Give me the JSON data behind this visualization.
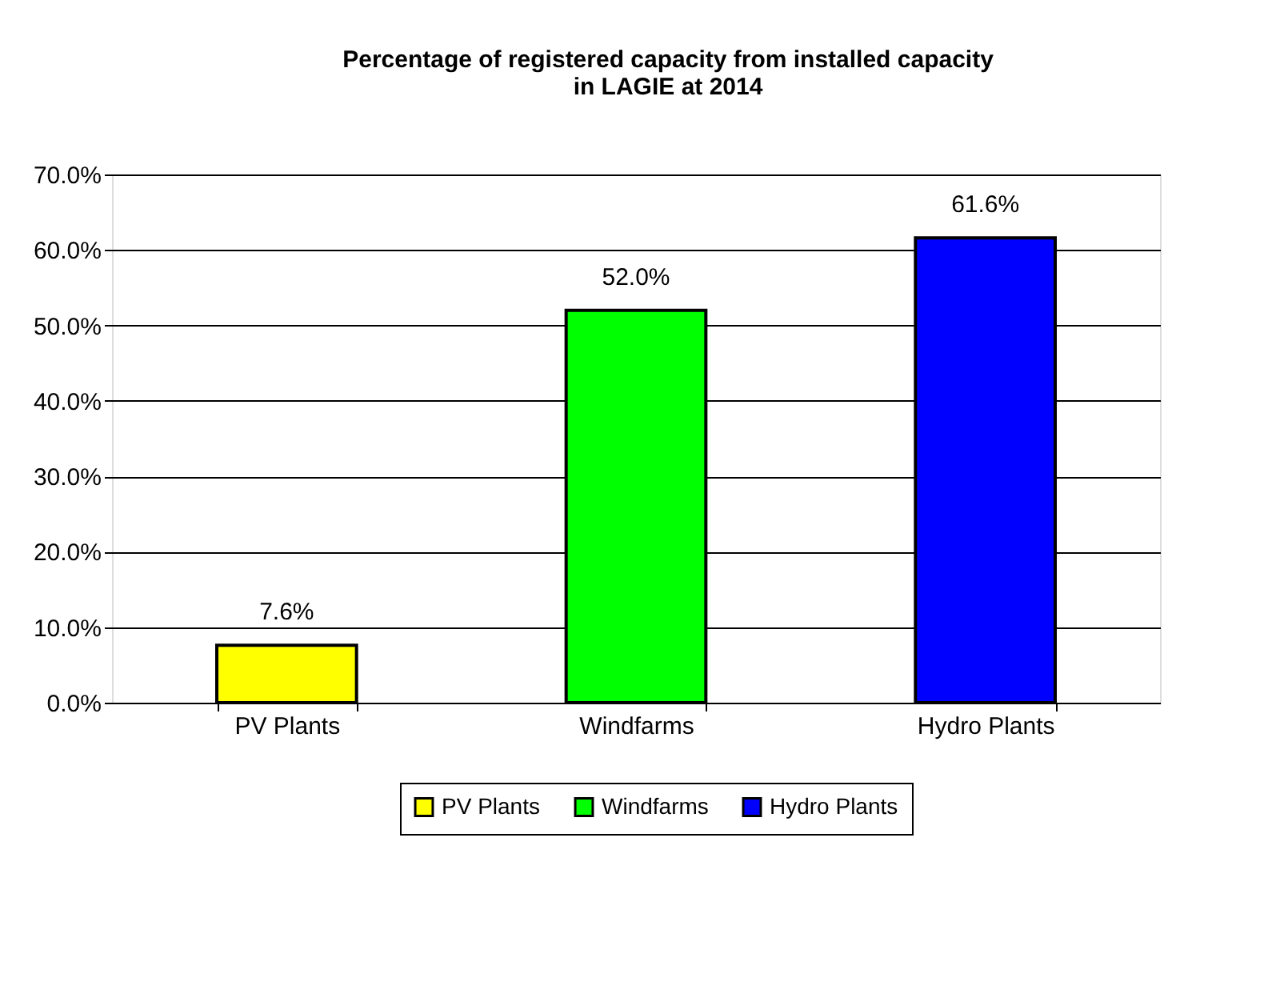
{
  "chart_data": {
    "type": "bar",
    "title": "Percentage of registered capacity from installed capacity  in LAGIE at 2014",
    "categories": [
      "PV Plants",
      "Windfarms",
      "Hydro Plants"
    ],
    "series": [
      {
        "name": "PV Plants",
        "color": "#ffff00",
        "values": [
          7.6,
          null,
          null
        ],
        "value_labels": [
          "7.6%",
          null,
          null
        ]
      },
      {
        "name": "Windfarms",
        "color": "#00ff00",
        "values": [
          null,
          52.0,
          null
        ],
        "value_labels": [
          null,
          "52.0%",
          null
        ]
      },
      {
        "name": "Hydro Plants",
        "color": "#0000ff",
        "values": [
          null,
          null,
          61.6
        ],
        "value_labels": [
          null,
          null,
          "61.6%"
        ]
      }
    ],
    "ylim": [
      0,
      70
    ],
    "yticks": [
      {
        "value": 0,
        "label": "0.0%"
      },
      {
        "value": 10,
        "label": "10.0%"
      },
      {
        "value": 20,
        "label": "20.0%"
      },
      {
        "value": 30,
        "label": "30.0%"
      },
      {
        "value": 40,
        "label": "40.0%"
      },
      {
        "value": 50,
        "label": "50.0%"
      },
      {
        "value": 60,
        "label": "60.0%"
      },
      {
        "value": 70,
        "label": "70.0%"
      }
    ],
    "grid": "y",
    "legend": "bottom"
  }
}
